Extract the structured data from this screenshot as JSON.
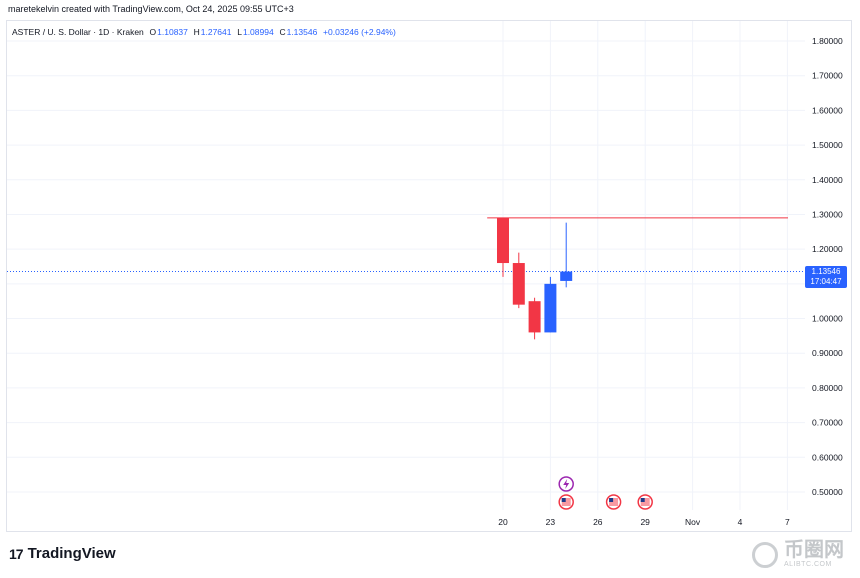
{
  "header": {
    "attribution": "maretekelvin created with TradingView.com, Oct 24, 2025 09:55 UTC+3"
  },
  "ohlc": {
    "symbol": "ASTER / U. S. Dollar · 1D · Kraken",
    "o_label": "O",
    "o_value": "1.10837",
    "h_label": "H",
    "h_value": "1.27641",
    "l_label": "L",
    "l_value": "1.08994",
    "c_label": "C",
    "c_value": "1.13546",
    "change": "+0.03246 (+2.94%)"
  },
  "price_tag": {
    "price": "1.13546",
    "countdown": "17:04:47"
  },
  "footer": {
    "logo_text": "TradingView",
    "logo_mark": "17"
  },
  "watermark": {
    "cn": "币圈网",
    "url": "ALIBTC.COM"
  },
  "colors": {
    "up": "#2962ff",
    "down": "#f23645",
    "grid": "#f0f3fa",
    "hline": "#f23645"
  },
  "chart_data": {
    "type": "candlestick",
    "y_axis": {
      "ticks": [
        "1.80000",
        "1.70000",
        "1.60000",
        "1.50000",
        "1.40000",
        "1.30000",
        "1.20000",
        "1.10000",
        "1.00000",
        "0.90000",
        "0.80000",
        "0.70000",
        "0.60000",
        "0.50000"
      ],
      "range": [
        0.46,
        1.83
      ],
      "position": "right"
    },
    "x_axis": {
      "labels": [
        "20",
        "23",
        "26",
        "29",
        "Nov",
        "4",
        "7"
      ]
    },
    "candles": [
      {
        "date": "Oct 20",
        "open": 1.29,
        "high": 1.29,
        "low": 1.12,
        "close": 1.16
      },
      {
        "date": "Oct 21",
        "open": 1.16,
        "high": 1.19,
        "low": 1.03,
        "close": 1.04
      },
      {
        "date": "Oct 22",
        "open": 1.05,
        "high": 1.06,
        "low": 0.94,
        "close": 0.96
      },
      {
        "date": "Oct 23",
        "open": 0.96,
        "high": 1.12,
        "low": 0.96,
        "close": 1.1
      },
      {
        "date": "Oct 24",
        "open": 1.10837,
        "high": 1.27641,
        "low": 1.08994,
        "close": 1.13546
      }
    ],
    "horizontal_line": 1.29,
    "current_price": 1.13546,
    "grid": true,
    "event_markers": [
      {
        "date": "Oct 24",
        "kind": "lightning-icon"
      },
      {
        "date": "Oct 24",
        "kind": "us-flag-icon"
      },
      {
        "date": "Oct 27",
        "kind": "us-flag-icon"
      },
      {
        "date": "Oct 29",
        "kind": "us-flag-icon"
      }
    ]
  }
}
